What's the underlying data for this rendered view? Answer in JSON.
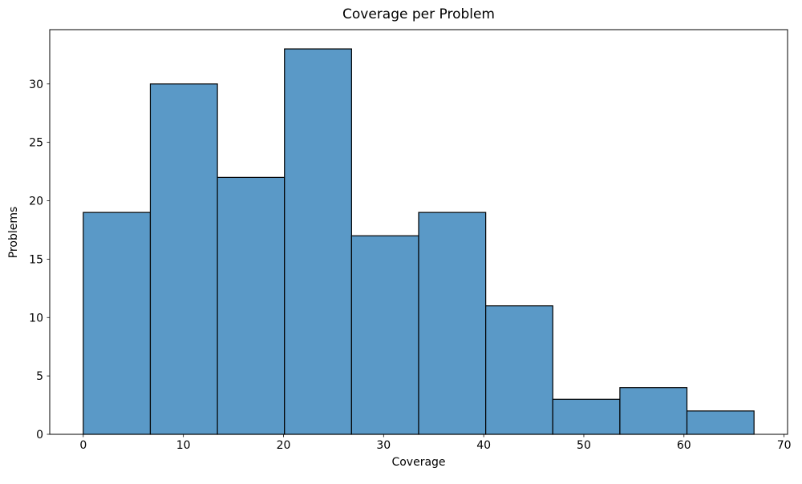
{
  "figure": {
    "background": "#ffffff"
  },
  "chart_data": {
    "type": "bar",
    "subtype": "histogram",
    "title": "Coverage per Problem",
    "xlabel": "Coverage",
    "ylabel": "Problems",
    "bin_edges": [
      0,
      6.7,
      13.4,
      20.1,
      26.8,
      33.5,
      40.2,
      46.9,
      53.6,
      60.3,
      67
    ],
    "counts": [
      19,
      30,
      22,
      33,
      17,
      19,
      11,
      3,
      4,
      2
    ],
    "xlim": [
      -3.35,
      70.35
    ],
    "ylim": [
      0,
      34.65
    ],
    "x_ticks": [
      0,
      10,
      20,
      30,
      40,
      50,
      60,
      70
    ],
    "y_ticks": [
      0,
      5,
      10,
      15,
      20,
      25,
      30
    ],
    "grid": false,
    "legend_position": "none",
    "colors": {
      "bar_fill": "#5a99c7",
      "bar_edge": "#000000",
      "axis": "#000000",
      "text": "#000000"
    }
  }
}
